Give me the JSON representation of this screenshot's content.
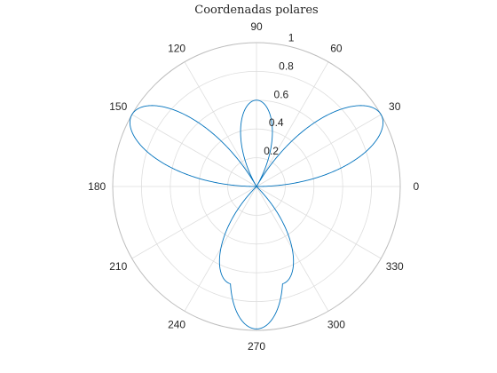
{
  "chart_data": {
    "type": "polar-line",
    "title": "Coordenadas  polares",
    "theta_ticks": [
      "0",
      "30",
      "60",
      "90",
      "120",
      "150",
      "180",
      "210",
      "240",
      "270",
      "300",
      "330"
    ],
    "theta_tick_values_deg": [
      0,
      30,
      60,
      90,
      120,
      150,
      180,
      210,
      240,
      270,
      300,
      330
    ],
    "r_ticks": [
      "0.2",
      "0.4",
      "0.6",
      "0.8",
      "1"
    ],
    "r_tick_values": [
      0.2,
      0.4,
      0.6,
      0.8,
      1
    ],
    "r_lim": [
      0,
      1
    ],
    "r_tick_label_angle_deg": 80,
    "grid": true,
    "series": [
      {
        "petals": [
          {
            "angle_deg": 30,
            "max_r": 1.0
          },
          {
            "angle_deg": 90,
            "max_r": 0.6
          },
          {
            "angle_deg": 150,
            "max_r": 1.0
          },
          {
            "angle_deg": 255,
            "max_r": 0.7
          },
          {
            "angle_deg": 285,
            "max_r": 0.7
          }
        ],
        "color": "#0072bd"
      }
    ]
  }
}
